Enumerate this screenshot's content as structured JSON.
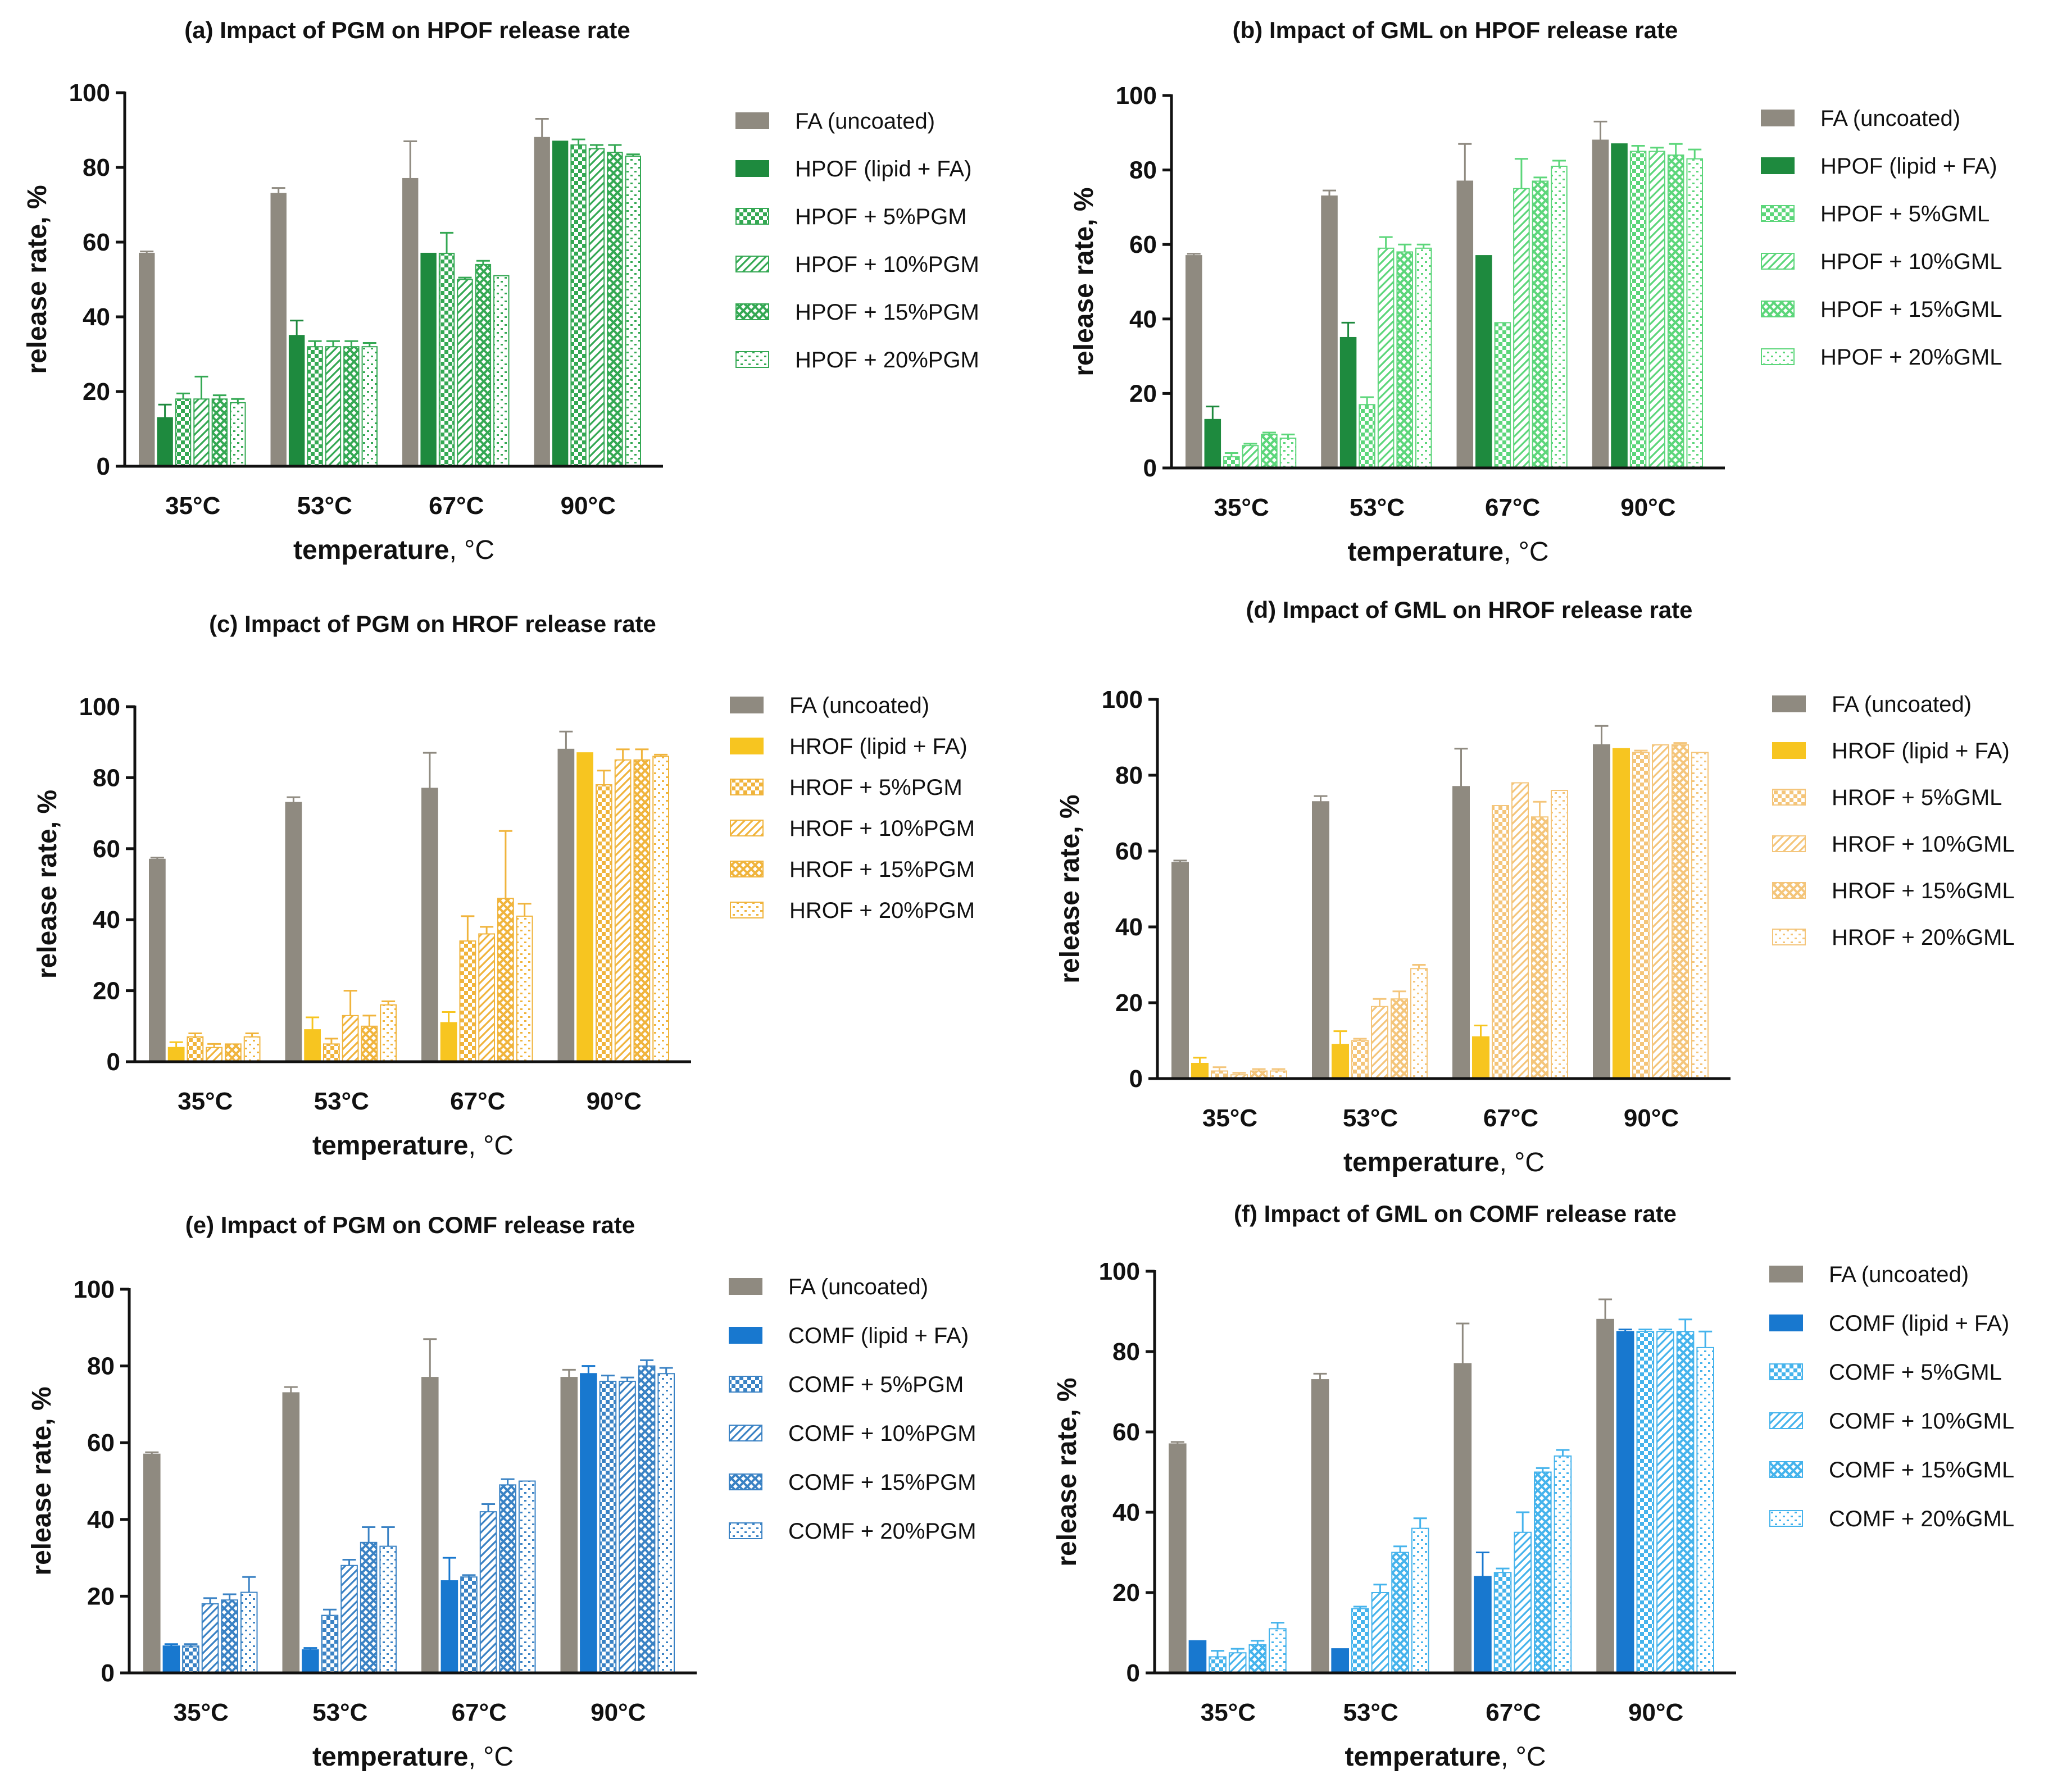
{
  "figure": {
    "pattern_names": [
      "solid",
      "solid",
      "checker",
      "diagonal",
      "crosshatch",
      "dotted"
    ]
  },
  "chart_data": [
    {
      "id": "a",
      "type": "bar",
      "title": "(a) Impact of PGM on HPOF release rate",
      "xlabel_bold": "temperature",
      "xlabel_rest": ", °C",
      "ylabel": "release rate, %",
      "ylim": [
        0,
        100
      ],
      "yticks": [
        0,
        20,
        40,
        60,
        80,
        100
      ],
      "categories": [
        "35°C",
        "53°C",
        "67°C",
        "90°C"
      ],
      "legend_position": "right",
      "series": [
        {
          "name": "FA (uncoated)",
          "color": "#8f8a80",
          "values": [
            57,
            73,
            77,
            88
          ],
          "errors": [
            0.5,
            1.5,
            10,
            5
          ]
        },
        {
          "name": "HPOF (lipid + FA)",
          "color": "#1e8a3e",
          "values": [
            13,
            35,
            57,
            87
          ],
          "errors": [
            3.5,
            4,
            0,
            0
          ]
        },
        {
          "name": "HPOF + 5%PGM",
          "color": "#34a853",
          "values": [
            18,
            32,
            57,
            86
          ],
          "errors": [
            1.5,
            1.5,
            5.5,
            1.5
          ]
        },
        {
          "name": "HPOF + 10%PGM",
          "color": "#34a853",
          "values": [
            18,
            32,
            50,
            85
          ],
          "errors": [
            6,
            1.5,
            0.5,
            1
          ]
        },
        {
          "name": "HPOF + 15%PGM",
          "color": "#34a853",
          "values": [
            18,
            32,
            54,
            84
          ],
          "errors": [
            1,
            1.5,
            1,
            2
          ]
        },
        {
          "name": "HPOF + 20%PGM",
          "color": "#34a853",
          "values": [
            17,
            32,
            51,
            83
          ],
          "errors": [
            1,
            1,
            0,
            0.5
          ]
        }
      ]
    },
    {
      "id": "b",
      "type": "bar",
      "title": "(b) Impact of GML on HPOF release rate",
      "xlabel_bold": "temperature",
      "xlabel_rest": ", °C",
      "ylabel": "release rate, %",
      "ylim": [
        0,
        100
      ],
      "yticks": [
        0,
        20,
        40,
        60,
        80,
        100
      ],
      "categories": [
        "35°C",
        "53°C",
        "67°C",
        "90°C"
      ],
      "legend_position": "right",
      "series": [
        {
          "name": "FA (uncoated)",
          "color": "#8f8a80",
          "values": [
            57,
            73,
            77,
            88
          ],
          "errors": [
            0.5,
            1.5,
            10,
            5
          ]
        },
        {
          "name": "HPOF (lipid + FA)",
          "color": "#1e8a3e",
          "values": [
            13,
            35,
            57,
            87
          ],
          "errors": [
            3.5,
            4,
            0,
            0
          ]
        },
        {
          "name": "HPOF + 5%GML",
          "color": "#5cd67a",
          "values": [
            3,
            17,
            39,
            85
          ],
          "errors": [
            1,
            2,
            0,
            1.5
          ]
        },
        {
          "name": "HPOF + 10%GML",
          "color": "#5cd67a",
          "values": [
            6,
            59,
            75,
            85
          ],
          "errors": [
            0.5,
            3,
            8,
            1
          ]
        },
        {
          "name": "HPOF + 15%GML",
          "color": "#5cd67a",
          "values": [
            9,
            58,
            77,
            84
          ],
          "errors": [
            0.5,
            2,
            1,
            3
          ]
        },
        {
          "name": "HPOF + 20%GML",
          "color": "#5cd67a",
          "values": [
            8,
            59,
            81,
            83
          ],
          "errors": [
            1,
            1,
            1.5,
            2.5
          ]
        }
      ]
    },
    {
      "id": "c",
      "type": "bar",
      "title": "(c) Impact of PGM on HROF release rate",
      "xlabel_bold": "temperature",
      "xlabel_rest": ", °C",
      "ylabel": "release rate, %",
      "ylim": [
        0,
        100
      ],
      "yticks": [
        0,
        20,
        40,
        60,
        80,
        100
      ],
      "categories": [
        "35°C",
        "53°C",
        "67°C",
        "90°C"
      ],
      "legend_position": "right",
      "series": [
        {
          "name": "FA (uncoated)",
          "color": "#8f8a80",
          "values": [
            57,
            73,
            77,
            88
          ],
          "errors": [
            0.5,
            1.5,
            10,
            5
          ]
        },
        {
          "name": "HROF (lipid + FA)",
          "color": "#f7c520",
          "values": [
            4,
            9,
            11,
            87
          ],
          "errors": [
            1.5,
            3.5,
            3,
            0
          ]
        },
        {
          "name": "HROF + 5%PGM",
          "color": "#f0b43c",
          "values": [
            7,
            5,
            34,
            78
          ],
          "errors": [
            1,
            1.5,
            7,
            4
          ]
        },
        {
          "name": "HROF + 10%PGM",
          "color": "#f0b43c",
          "values": [
            4,
            13,
            36,
            85
          ],
          "errors": [
            1,
            7,
            2,
            3
          ]
        },
        {
          "name": "HROF + 15%PGM",
          "color": "#f0b43c",
          "values": [
            5,
            10,
            46,
            85
          ],
          "errors": [
            0,
            3,
            19,
            3
          ]
        },
        {
          "name": "HROF + 20%PGM",
          "color": "#f0b43c",
          "values": [
            7,
            16,
            41,
            86
          ],
          "errors": [
            1,
            1,
            3.5,
            0.5
          ]
        }
      ]
    },
    {
      "id": "d",
      "type": "bar",
      "title": "(d) Impact of GML on HROF release rate",
      "xlabel_bold": "temperature",
      "xlabel_rest": ", °C",
      "ylabel": "release rate, %",
      "ylim": [
        0,
        100
      ],
      "yticks": [
        0,
        20,
        40,
        60,
        80,
        100
      ],
      "categories": [
        "35°C",
        "53°C",
        "67°C",
        "90°C"
      ],
      "legend_position": "right",
      "series": [
        {
          "name": "FA (uncoated)",
          "color": "#8f8a80",
          "values": [
            57,
            73,
            77,
            88
          ],
          "errors": [
            0.5,
            1.5,
            10,
            5
          ]
        },
        {
          "name": "HROF (lipid + FA)",
          "color": "#f7c520",
          "values": [
            4,
            9,
            11,
            87
          ],
          "errors": [
            1.5,
            3.5,
            3,
            0
          ]
        },
        {
          "name": "HROF + 5%GML",
          "color": "#f4c57a",
          "values": [
            2,
            10,
            72,
            86
          ],
          "errors": [
            1,
            0.5,
            0,
            0.5
          ]
        },
        {
          "name": "HROF + 10%GML",
          "color": "#f4c57a",
          "values": [
            1,
            19,
            78,
            88
          ],
          "errors": [
            0.5,
            2,
            0,
            0
          ]
        },
        {
          "name": "HROF + 15%GML",
          "color": "#f4c57a",
          "values": [
            2,
            21,
            69,
            88
          ],
          "errors": [
            0.5,
            2,
            4,
            0.5
          ]
        },
        {
          "name": "HROF + 20%GML",
          "color": "#f4c57a",
          "values": [
            2,
            29,
            76,
            86
          ],
          "errors": [
            0.5,
            1,
            0,
            0
          ]
        }
      ]
    },
    {
      "id": "e",
      "type": "bar",
      "title": "(e) Impact of PGM on COMF release rate",
      "xlabel_bold": "temperature",
      "xlabel_rest": ", °C",
      "ylabel": "release rate, %",
      "ylim": [
        0,
        100
      ],
      "yticks": [
        0,
        20,
        40,
        60,
        80,
        100
      ],
      "categories": [
        "35°C",
        "53°C",
        "67°C",
        "90°C"
      ],
      "legend_position": "right",
      "series": [
        {
          "name": "FA (uncoated)",
          "color": "#8f8a80",
          "values": [
            57,
            73,
            77,
            77
          ],
          "errors": [
            0.5,
            1.5,
            10,
            2
          ]
        },
        {
          "name": "COMF (lipid + FA)",
          "color": "#1878cf",
          "values": [
            7,
            6,
            24,
            78
          ],
          "errors": [
            0.5,
            0.5,
            6,
            2
          ]
        },
        {
          "name": "COMF + 5%PGM",
          "color": "#3a82c4",
          "values": [
            7,
            15,
            25,
            76
          ],
          "errors": [
            0.5,
            1.5,
            0.5,
            1.5
          ]
        },
        {
          "name": "COMF + 10%PGM",
          "color": "#3a82c4",
          "values": [
            18,
            28,
            42,
            76
          ],
          "errors": [
            1.5,
            1.5,
            2,
            1
          ]
        },
        {
          "name": "COMF + 15%PGM",
          "color": "#3a82c4",
          "values": [
            19,
            34,
            49,
            80
          ],
          "errors": [
            1.5,
            4,
            1.5,
            1.5
          ]
        },
        {
          "name": "COMF + 20%PGM",
          "color": "#3a82c4",
          "values": [
            21,
            33,
            50,
            78
          ],
          "errors": [
            4,
            5,
            0,
            1.5
          ]
        }
      ]
    },
    {
      "id": "f",
      "type": "bar",
      "title": "(f) Impact of GML on COMF release rate",
      "xlabel_bold": "temperature",
      "xlabel_rest": ", °C",
      "ylabel": "release rate, %",
      "ylim": [
        0,
        100
      ],
      "yticks": [
        0,
        20,
        40,
        60,
        80,
        100
      ],
      "categories": [
        "35°C",
        "53°C",
        "67°C",
        "90°C"
      ],
      "legend_position": "right",
      "series": [
        {
          "name": "FA (uncoated)",
          "color": "#8f8a80",
          "values": [
            57,
            73,
            77,
            88
          ],
          "errors": [
            0.5,
            1.5,
            10,
            5
          ]
        },
        {
          "name": "COMF (lipid + FA)",
          "color": "#1878cf",
          "values": [
            8,
            6,
            24,
            85
          ],
          "errors": [
            0,
            0,
            6,
            0.5
          ]
        },
        {
          "name": "COMF + 5%GML",
          "color": "#45b3ec",
          "values": [
            4,
            16,
            25,
            85
          ],
          "errors": [
            1.5,
            0.5,
            1,
            0.5
          ]
        },
        {
          "name": "COMF + 10%GML",
          "color": "#45b3ec",
          "values": [
            5,
            20,
            35,
            85
          ],
          "errors": [
            1,
            2,
            5,
            0.5
          ]
        },
        {
          "name": "COMF + 15%GML",
          "color": "#45b3ec",
          "values": [
            7,
            30,
            50,
            85
          ],
          "errors": [
            1,
            1.5,
            1,
            3
          ]
        },
        {
          "name": "COMF + 20%GML",
          "color": "#45b3ec",
          "values": [
            11,
            36,
            54,
            81
          ],
          "errors": [
            1.5,
            2.5,
            1.5,
            4
          ]
        }
      ]
    }
  ]
}
